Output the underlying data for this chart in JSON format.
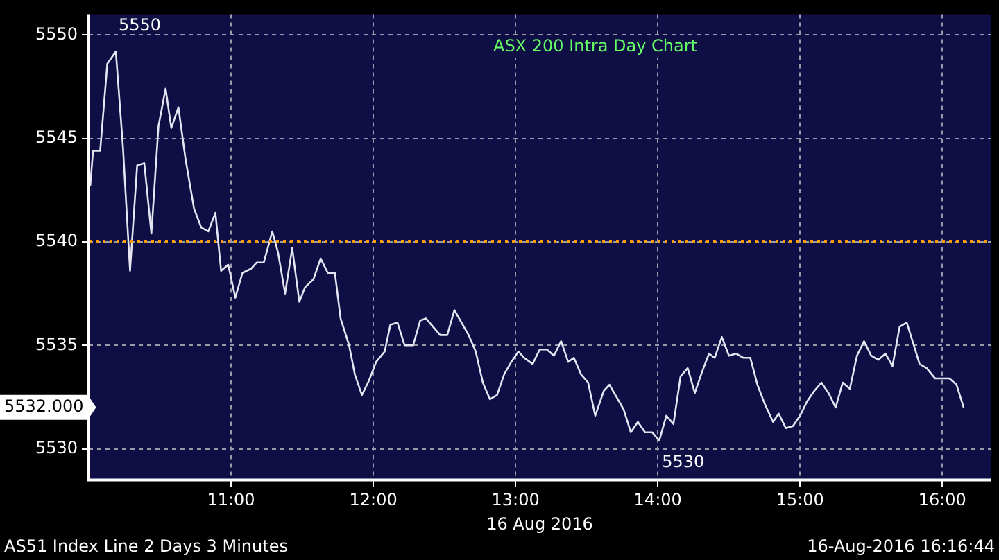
{
  "chart_data": {
    "type": "line",
    "title": "ASX 200 Intra Day Chart",
    "xlabel": "16 Aug 2016",
    "x": [
      10.01,
      10.03,
      10.08,
      10.13,
      10.19,
      10.24,
      10.29,
      10.34,
      10.39,
      10.44,
      10.49,
      10.54,
      10.58,
      10.63,
      10.68,
      10.74,
      10.79,
      10.84,
      10.89,
      10.93,
      10.98,
      11.03,
      11.08,
      11.14,
      11.18,
      11.23,
      11.29,
      11.33,
      11.38,
      11.43,
      11.48,
      11.52,
      11.58,
      11.63,
      11.68,
      11.73,
      11.77,
      11.83,
      11.87,
      11.92,
      11.97,
      12.02,
      12.08,
      12.12,
      12.17,
      12.22,
      12.28,
      12.33,
      12.37,
      12.42,
      12.47,
      12.52,
      12.57,
      12.62,
      12.67,
      12.72,
      12.77,
      12.82,
      12.87,
      12.92,
      12.97,
      13.02,
      13.06,
      13.12,
      13.17,
      13.22,
      13.27,
      13.32,
      13.37,
      13.41,
      13.46,
      13.51,
      13.56,
      13.62,
      13.66,
      13.71,
      13.76,
      13.81,
      13.86,
      13.91,
      13.96,
      14.01,
      14.06,
      14.11,
      14.16,
      14.21,
      14.26,
      14.31,
      14.36,
      14.4,
      14.45,
      14.5,
      14.55,
      14.6,
      14.65,
      14.7,
      14.75,
      14.81,
      14.85,
      14.9,
      14.95,
      15.0,
      15.05,
      15.1,
      15.15,
      15.2,
      15.25,
      15.3,
      15.35,
      15.4,
      15.45,
      15.5,
      15.55,
      15.6,
      15.65,
      15.7,
      15.75,
      15.8,
      15.84,
      15.89,
      15.95,
      16.0,
      16.05,
      16.1,
      16.15
    ],
    "series": [
      {
        "color": "#e6e6f2",
        "values": [
          5542.7,
          5544.4,
          5544.4,
          5548.6,
          5549.2,
          5544.6,
          5538.6,
          5543.7,
          5543.8,
          5540.4,
          5545.6,
          5547.4,
          5545.5,
          5546.5,
          5544.0,
          5541.6,
          5540.7,
          5540.5,
          5541.4,
          5538.6,
          5538.9,
          5537.3,
          5538.5,
          5538.7,
          5539.0,
          5539.0,
          5540.5,
          5539.5,
          5537.5,
          5539.7,
          5537.1,
          5537.8,
          5538.2,
          5539.2,
          5538.5,
          5538.5,
          5536.3,
          5535.0,
          5533.6,
          5532.6,
          5533.3,
          5534.2,
          5534.7,
          5536.0,
          5536.1,
          5535.0,
          5535.0,
          5536.2,
          5536.3,
          5535.9,
          5535.5,
          5535.5,
          5536.7,
          5536.1,
          5535.5,
          5534.7,
          5533.2,
          5532.4,
          5532.6,
          5533.6,
          5534.2,
          5534.7,
          5534.4,
          5534.1,
          5534.8,
          5534.8,
          5534.5,
          5535.2,
          5534.2,
          5534.4,
          5533.6,
          5533.2,
          5531.6,
          5532.8,
          5533.1,
          5532.5,
          5531.9,
          5530.8,
          5531.3,
          5530.8,
          5530.8,
          5530.4,
          5531.6,
          5531.2,
          5533.5,
          5533.9,
          5532.7,
          5533.7,
          5534.6,
          5534.4,
          5535.4,
          5534.5,
          5534.6,
          5534.4,
          5534.4,
          5533.1,
          5532.2,
          5531.3,
          5531.7,
          5531.0,
          5531.1,
          5531.6,
          5532.3,
          5532.8,
          5533.2,
          5532.7,
          5532.0,
          5533.2,
          5532.9,
          5534.5,
          5535.2,
          5534.5,
          5534.3,
          5534.6,
          5534.0,
          5535.9,
          5536.1,
          5535.0,
          5534.1,
          5533.9,
          5533.4,
          5533.4,
          5533.4,
          5533.1,
          5532.0
        ]
      }
    ],
    "xlim": [
      10,
      16.34
    ],
    "xticks": [
      {
        "value": 11,
        "label": "11:00"
      },
      {
        "value": 12,
        "label": "12:00"
      },
      {
        "value": 13,
        "label": "13:00"
      },
      {
        "value": 14,
        "label": "14:00"
      },
      {
        "value": 15,
        "label": "15:00"
      },
      {
        "value": 16,
        "label": "16:00"
      }
    ],
    "ylim": [
      5528.5,
      5551
    ],
    "yticks": [
      5530,
      5535,
      5540,
      5545,
      5550
    ],
    "grid": true,
    "legend": false,
    "marker": "none",
    "line_style": "solid",
    "ref_lines": [
      {
        "axis": "y",
        "value": 5540,
        "color": "#ff9900",
        "line_style": "dotted"
      }
    ],
    "annotations": [
      {
        "text": "5550",
        "x": 10.19,
        "y": 5549.2
      },
      {
        "text": "5530",
        "x": 14.01,
        "y": 5530.4
      },
      "5532.000",
      "AS51 Index Line 2 Days 3 Minutes",
      "16-Aug-2016 16:16:44"
    ]
  }
}
